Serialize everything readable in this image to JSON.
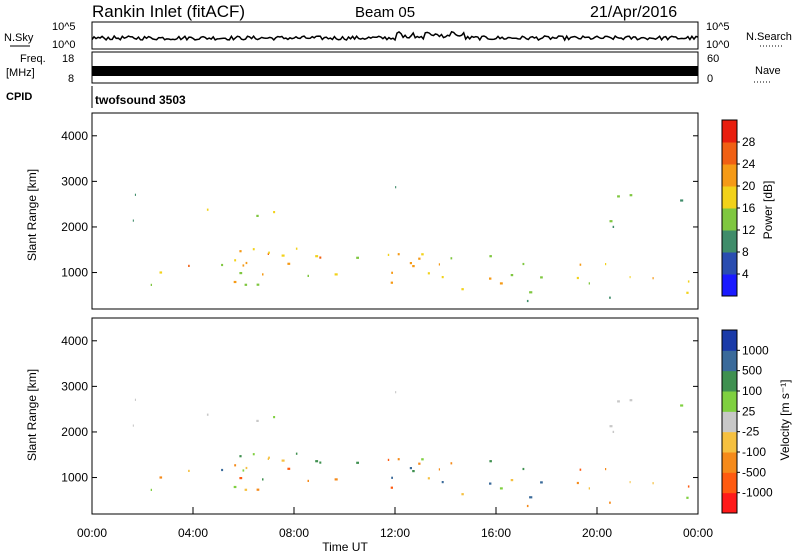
{
  "header": {
    "station": "Rankin Inlet (fitACF)",
    "beam": "Beam 05",
    "date": "21/Apr/2016"
  },
  "panels": {
    "nsky_label": "N.Sky",
    "nsky_ticks": [
      "10^5",
      "10^0"
    ],
    "nsearch_label": "N.Search",
    "nsearch_ticks": [
      "10^5",
      "10^0"
    ],
    "freq_label": "Freq.",
    "freq_unit": "[MHz]",
    "freq_ticks": [
      "18",
      "8"
    ],
    "nave_label": "Nave",
    "nave_ticks": [
      "60",
      "0"
    ],
    "cpid_label": "CPID",
    "cpid_value": "twofsound 3503"
  },
  "colors": {
    "power": [
      "#1a1aff",
      "#2a4db0",
      "#3f8c6a",
      "#7fc740",
      "#f2d21a",
      "#f59a16",
      "#f06014",
      "#e81e0e"
    ],
    "velocity": [
      "#ff1a1a",
      "#ff5a10",
      "#f58a1a",
      "#f5c040",
      "#c8c8c8",
      "#7fd040",
      "#3f9050",
      "#3a6a9a",
      "#1a3aa8"
    ]
  },
  "chart_data": [
    {
      "type": "heatmap",
      "name": "power",
      "ylabel": "Slant Range [km]",
      "yticks": [
        "1000",
        "2000",
        "3000",
        "4000"
      ],
      "ylim": [
        200,
        4500
      ],
      "xlim": [
        "00:00",
        "24:00"
      ],
      "colorbar_label": "Power [dB]",
      "colorbar_ticks": [
        "4",
        "8",
        "12",
        "16",
        "20",
        "24",
        "28"
      ]
    },
    {
      "type": "heatmap",
      "name": "velocity",
      "ylabel": "Slant Range [km]",
      "yticks": [
        "1000",
        "2000",
        "3000",
        "4000"
      ],
      "ylim": [
        200,
        4500
      ],
      "xlim": [
        "00:00",
        "24:00"
      ],
      "xticks": [
        "00:00",
        "04:00",
        "08:00",
        "12:00",
        "16:00",
        "20:00",
        "00:00"
      ],
      "xlabel": "Time UT",
      "colorbar_label": "Velocity [m s⁻¹]",
      "colorbar_ticks": [
        "-1000",
        "-500",
        "-100",
        "-25",
        "25",
        "100",
        "500",
        "1000"
      ]
    }
  ]
}
